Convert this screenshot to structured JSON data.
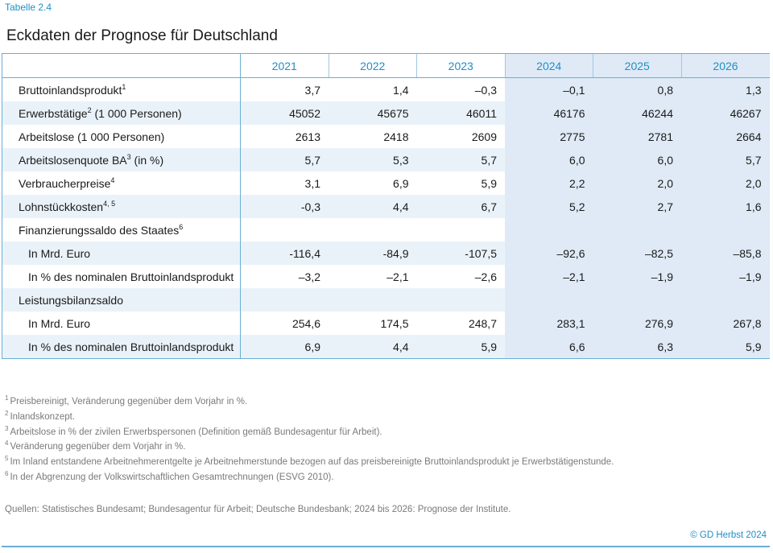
{
  "tag": "Tabelle 2.4",
  "title": "Eckdaten der Prognose für Deutschland",
  "years": [
    "2021",
    "2022",
    "2023",
    "2024",
    "2025",
    "2026"
  ],
  "rows": [
    {
      "label": "Bruttoinlandsprodukt",
      "note": "1",
      "values": [
        "3,7",
        "1,4",
        "–0,3",
        "–0,1",
        "0,8",
        "1,3"
      ]
    },
    {
      "label": "Erwerbstätige",
      "note": "2",
      "suffix": " (1 000 Personen)",
      "values": [
        "45052",
        "45675",
        "46011",
        "46176",
        "46244",
        "46267"
      ]
    },
    {
      "label": "Arbeitslose (1 000 Personen)",
      "values": [
        "2613",
        "2418",
        "2609",
        "2775",
        "2781",
        "2664"
      ]
    },
    {
      "label": "Arbeitslosenquote BA",
      "note": "3",
      "suffix": " (in %)",
      "values": [
        "5,7",
        "5,3",
        "5,7",
        "6,0",
        "6,0",
        "5,7"
      ]
    },
    {
      "label": "Verbraucherpreise",
      "note": "4",
      "values": [
        "3,1",
        "6,9",
        "5,9",
        "2,2",
        "2,0",
        "2,0"
      ]
    },
    {
      "label": "Lohnstückkosten",
      "note": "4, 5",
      "values": [
        "-0,3",
        "4,4",
        "6,7",
        "5,2",
        "2,7",
        "1,6"
      ]
    },
    {
      "label": "Finanzierungssaldo des Staates",
      "note": "6",
      "values": []
    },
    {
      "label": "In Mrd. Euro",
      "sub": true,
      "values": [
        "-116,4",
        "-84,9",
        "-107,5",
        "–92,6",
        "–82,5",
        "–85,8"
      ]
    },
    {
      "label": "In % des nominalen Bruttoinlandsprodukt",
      "sub": true,
      "values": [
        "–3,2",
        "–2,1",
        "–2,6",
        "–2,1",
        "–1,9",
        "–1,9"
      ]
    },
    {
      "label": "Leistungsbilanzsaldo",
      "values": []
    },
    {
      "label": "In Mrd. Euro",
      "sub": true,
      "values": [
        "254,6",
        "174,5",
        "248,7",
        "283,1",
        "276,9",
        "267,8"
      ]
    },
    {
      "label": "In % des nominalen Bruttoinlandsprodukt",
      "sub": true,
      "values": [
        "6,9",
        "4,4",
        "5,9",
        "6,6",
        "6,3",
        "5,9"
      ]
    }
  ],
  "footnotes": [
    {
      "num": "1",
      "text": "Preisbereinigt, Veränderung gegenüber dem Vorjahr in %."
    },
    {
      "num": "2",
      "text": "Inlandskonzept."
    },
    {
      "num": "3",
      "text": "Arbeitslose in % der zivilen Erwerbspersonen (Definition gemäß Bundesagentur für Arbeit)."
    },
    {
      "num": "4",
      "text": "Veränderung gegenüber dem Vorjahr in %."
    },
    {
      "num": "5",
      "text": "Im Inland entstandene Arbeitnehmerentgelte je Arbeitnehmerstunde bezogen auf das preisbereinigte Bruttoinlandsprodukt je Erwerbstätigenstunde."
    },
    {
      "num": "6",
      "text": "In der Abgrenzung der Volkswirtschaftlichen Gesamtrechnungen (ESVG 2010)."
    }
  ],
  "sources": "Quellen: Statistisches Bundesamt; Bundesagentur für Arbeit; Deutsche Bundesbank; 2024 bis 2026: Prognose der Institute.",
  "copyright": "© GD Herbst 2024",
  "colors": {
    "accent": "#1f8fc6",
    "rule": "#6aaed6",
    "rowShade": "#eaf2f9",
    "forecastShade": "#dfeaf6"
  }
}
